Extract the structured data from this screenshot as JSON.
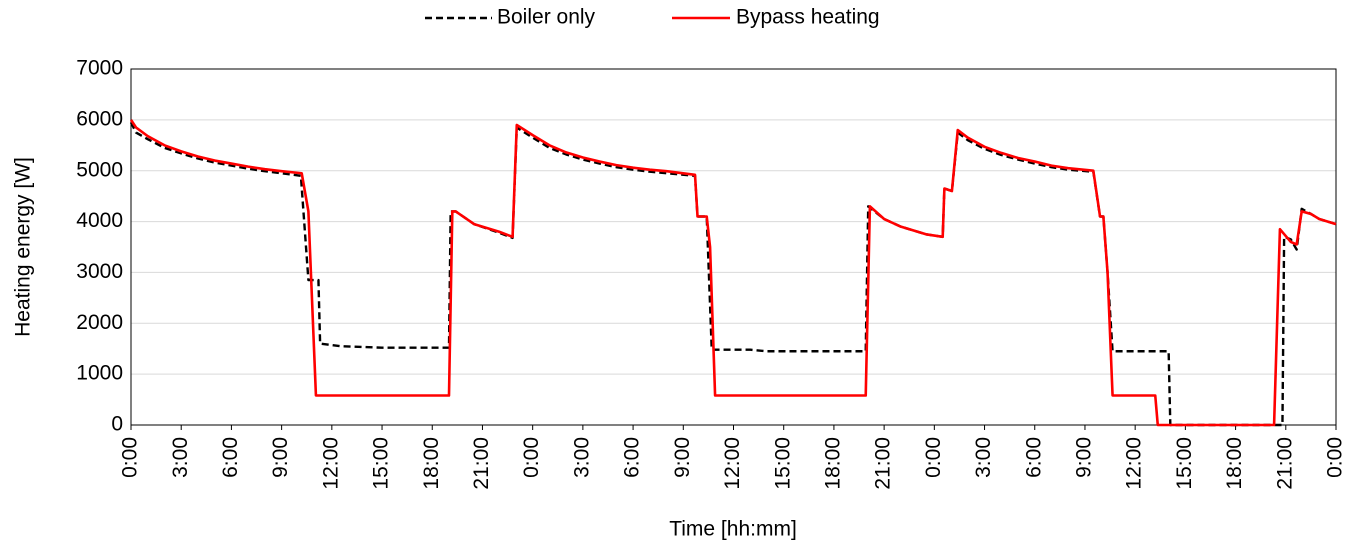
{
  "chart_data": {
    "type": "line",
    "xlabel": "Time [hh:mm]",
    "ylabel": "Heating energy [W]",
    "xlim": [
      0,
      72
    ],
    "ylim": [
      0,
      7000
    ],
    "yticks": [
      0,
      1000,
      2000,
      3000,
      4000,
      5000,
      6000,
      7000
    ],
    "xticks": [
      {
        "value": 0,
        "label": "0:00"
      },
      {
        "value": 3,
        "label": "3:00"
      },
      {
        "value": 6,
        "label": "6:00"
      },
      {
        "value": 9,
        "label": "9:00"
      },
      {
        "value": 12,
        "label": "12:00"
      },
      {
        "value": 15,
        "label": "15:00"
      },
      {
        "value": 18,
        "label": "18:00"
      },
      {
        "value": 21,
        "label": "21:00"
      },
      {
        "value": 24,
        "label": "0:00"
      },
      {
        "value": 27,
        "label": "3:00"
      },
      {
        "value": 30,
        "label": "6:00"
      },
      {
        "value": 33,
        "label": "9:00"
      },
      {
        "value": 36,
        "label": "12:00"
      },
      {
        "value": 39,
        "label": "15:00"
      },
      {
        "value": 42,
        "label": "18:00"
      },
      {
        "value": 45,
        "label": "21:00"
      },
      {
        "value": 48,
        "label": "0:00"
      },
      {
        "value": 51,
        "label": "3:00"
      },
      {
        "value": 54,
        "label": "6:00"
      },
      {
        "value": 57,
        "label": "9:00"
      },
      {
        "value": 60,
        "label": "12:00"
      },
      {
        "value": 63,
        "label": "15:00"
      },
      {
        "value": 66,
        "label": "18:00"
      },
      {
        "value": 69,
        "label": "21:00"
      },
      {
        "value": 72,
        "label": "0:00"
      }
    ],
    "grid": true,
    "legend": "top",
    "series": [
      {
        "name": "Boiler only",
        "color": "#000000",
        "linestyle": "dashed",
        "x": [
          0,
          0.3,
          1,
          2,
          3,
          4,
          5,
          6,
          7,
          8,
          9,
          10.15,
          10.6,
          11.2,
          11.3,
          12.5,
          15,
          19.0,
          19.1,
          19.4,
          20.5,
          22,
          22.8,
          23.05,
          24,
          25,
          26,
          27,
          28,
          29,
          30,
          31,
          32,
          33.7,
          33.85,
          34.4,
          34.7,
          37,
          38,
          43.9,
          44.05,
          45,
          46,
          47.5,
          48.5,
          48.6,
          49.05,
          49.4,
          50,
          51,
          52,
          53,
          54,
          55,
          56,
          57.5,
          57.9,
          58.1,
          58.35,
          58.65,
          62.0,
          62.1,
          68.8,
          68.9,
          69.3,
          69.65,
          69.95,
          70.5,
          71,
          72
        ],
        "values": [
          5950,
          5750,
          5620,
          5450,
          5340,
          5240,
          5160,
          5100,
          5040,
          4990,
          4950,
          4900,
          2850,
          2850,
          1600,
          1550,
          1520,
          1520,
          4200,
          4200,
          3950,
          3780,
          3680,
          5850,
          5650,
          5450,
          5320,
          5220,
          5140,
          5070,
          5020,
          4980,
          4950,
          4900,
          4100,
          4100,
          1480,
          1480,
          1450,
          1450,
          4300,
          4050,
          3900,
          3750,
          3700,
          4650,
          4600,
          5750,
          5600,
          5430,
          5310,
          5220,
          5140,
          5070,
          5020,
          4980,
          4100,
          4100,
          3000,
          1450,
          1450,
          0,
          0,
          3700,
          3650,
          3450,
          4250,
          4150,
          4050,
          3950
        ]
      },
      {
        "name": "Bypass heating",
        "color": "#ff0000",
        "linestyle": "solid",
        "x": [
          0,
          0.3,
          1,
          2,
          3,
          4,
          5,
          6,
          7,
          8,
          9,
          10.2,
          10.6,
          11.05,
          19.0,
          19.2,
          19.4,
          20.5,
          22,
          22.8,
          23.05,
          24,
          25,
          26,
          27,
          28,
          29,
          30,
          31,
          32,
          33.7,
          33.85,
          34.4,
          34.6,
          34.9,
          43.9,
          44.15,
          45,
          46,
          47.5,
          48.5,
          48.6,
          49.05,
          49.4,
          50,
          51,
          52,
          53,
          54,
          55,
          56,
          57.5,
          57.9,
          58.1,
          58.35,
          58.65,
          61.2,
          61.35,
          68.3,
          68.65,
          69.3,
          69.65,
          69.95,
          70.5,
          71,
          72
        ],
        "values": [
          6000,
          5850,
          5680,
          5500,
          5380,
          5280,
          5200,
          5140,
          5080,
          5030,
          4990,
          4950,
          4200,
          580,
          580,
          4200,
          4200,
          3950,
          3800,
          3700,
          5900,
          5700,
          5500,
          5360,
          5260,
          5180,
          5110,
          5060,
          5020,
          4990,
          4920,
          4100,
          4100,
          3500,
          580,
          580,
          4300,
          4050,
          3900,
          3750,
          3700,
          4650,
          4600,
          5800,
          5650,
          5470,
          5350,
          5250,
          5180,
          5100,
          5050,
          5000,
          4100,
          4100,
          3000,
          580,
          580,
          0,
          0,
          3850,
          3600,
          3550,
          4200,
          4150,
          4050,
          3950
        ]
      }
    ]
  }
}
